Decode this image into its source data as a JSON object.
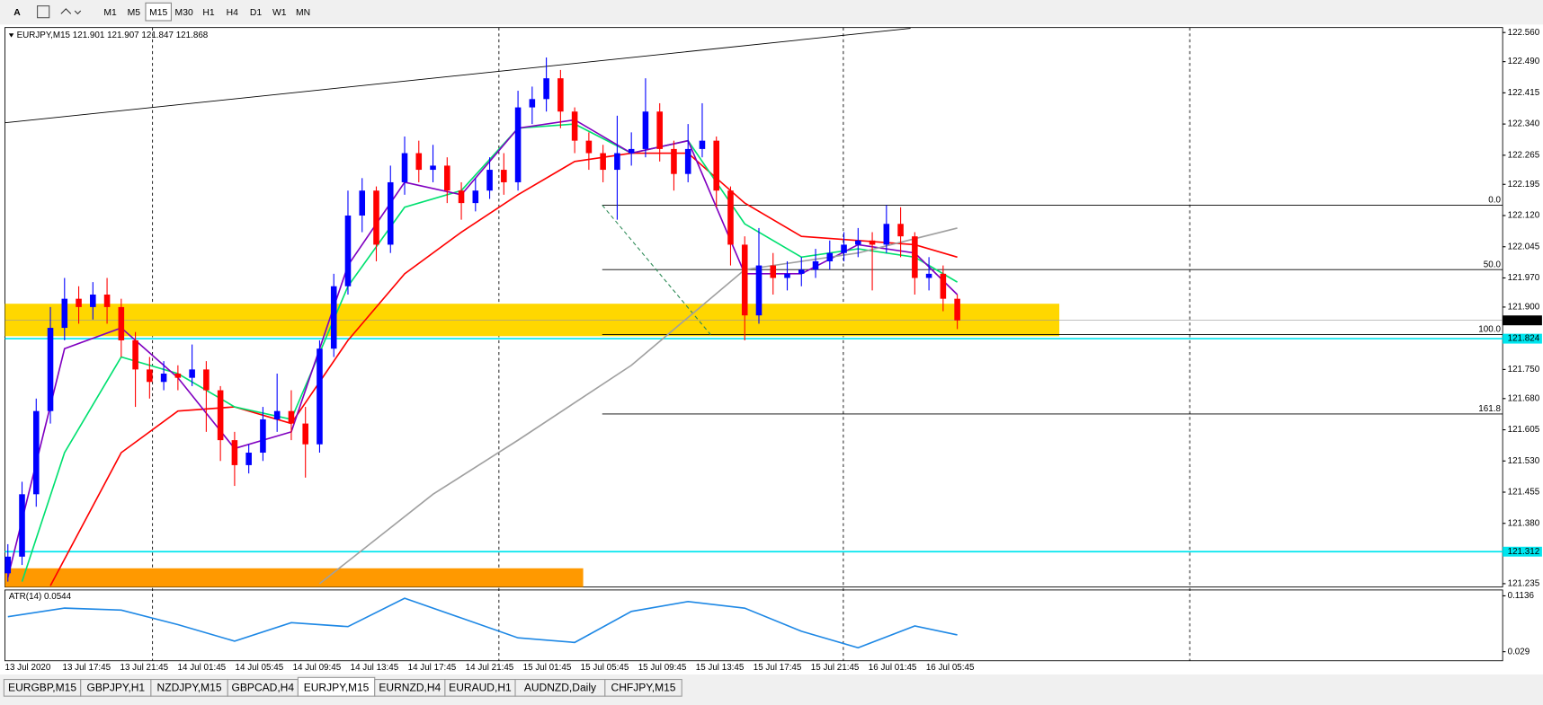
{
  "toolbar": {
    "tool": "A",
    "timeframes": [
      "M1",
      "M5",
      "M15",
      "M30",
      "H1",
      "H4",
      "D1",
      "W1",
      "MN"
    ],
    "active": "M15"
  },
  "chart_data": {
    "type": "candlestick",
    "title": "EURJPY,M15  121.901 121.907 121.847 121.868",
    "time_labels": [
      "13 Jul 2020",
      "13 Jul 17:45",
      "13 Jul 21:45",
      "14 Jul 01:45",
      "14 Jul 05:45",
      "14 Jul 09:45",
      "14 Jul 13:45",
      "14 Jul 17:45",
      "14 Jul 21:45",
      "15 Jul 01:45",
      "15 Jul 05:45",
      "15 Jul 09:45",
      "15 Jul 13:45",
      "15 Jul 17:45",
      "15 Jul 21:45",
      "16 Jul 01:45",
      "16 Jul 05:45"
    ],
    "open": [
      121.26,
      121.3,
      121.45,
      121.65,
      121.85,
      121.92,
      121.9,
      121.93,
      121.9,
      121.82,
      121.75,
      121.72,
      121.74,
      121.73,
      121.75,
      121.7,
      121.58,
      121.52,
      121.55,
      121.63,
      121.65,
      121.62,
      121.57,
      121.8,
      121.95,
      122.12,
      122.18,
      122.05,
      122.2,
      122.27,
      122.23,
      122.24,
      122.18,
      122.15,
      122.18,
      122.23,
      122.2,
      122.38,
      122.4,
      122.45,
      122.37,
      122.3,
      122.27,
      122.23,
      122.27,
      122.28,
      122.37,
      122.28,
      122.22,
      122.28,
      122.3,
      122.18,
      122.05,
      121.88,
      122.0,
      121.97,
      121.98,
      121.99,
      122.01,
      122.03,
      122.05,
      122.06,
      122.05,
      122.1,
      122.07,
      121.97,
      121.98,
      121.92
    ],
    "high": [
      121.33,
      121.48,
      121.68,
      121.9,
      121.97,
      121.95,
      121.96,
      121.97,
      121.92,
      121.84,
      121.78,
      121.77,
      121.76,
      121.81,
      121.77,
      121.71,
      121.6,
      121.57,
      121.66,
      121.74,
      121.7,
      121.66,
      121.82,
      121.98,
      122.18,
      122.21,
      122.19,
      122.24,
      122.31,
      122.3,
      122.29,
      122.26,
      122.2,
      122.21,
      122.26,
      122.27,
      122.42,
      122.43,
      122.5,
      122.47,
      122.38,
      122.32,
      122.29,
      122.36,
      122.32,
      122.45,
      122.39,
      122.3,
      122.34,
      122.39,
      122.31,
      122.19,
      122.07,
      122.09,
      122.03,
      122.01,
      122.02,
      122.04,
      122.06,
      122.08,
      122.09,
      122.08,
      122.145,
      122.14,
      122.08,
      122.02,
      122.0,
      121.93
    ],
    "low": [
      121.24,
      121.28,
      121.42,
      121.62,
      121.82,
      121.86,
      121.87,
      121.86,
      121.78,
      121.66,
      121.68,
      121.7,
      121.7,
      121.71,
      121.6,
      121.53,
      121.47,
      121.5,
      121.53,
      121.6,
      121.58,
      121.49,
      121.55,
      121.78,
      121.93,
      122.08,
      122.01,
      122.03,
      122.17,
      122.2,
      122.2,
      122.15,
      122.11,
      122.13,
      122.16,
      122.17,
      122.18,
      122.34,
      122.37,
      122.33,
      122.27,
      122.23,
      122.2,
      122.11,
      122.24,
      122.26,
      122.25,
      122.18,
      122.2,
      122.26,
      122.14,
      122.0,
      121.82,
      121.86,
      121.93,
      121.94,
      121.95,
      121.97,
      121.99,
      122.01,
      122.02,
      121.94,
      122.03,
      122.02,
      121.93,
      121.94,
      121.89,
      121.847
    ],
    "close": [
      121.3,
      121.45,
      121.65,
      121.85,
      121.92,
      121.9,
      121.93,
      121.9,
      121.82,
      121.75,
      121.72,
      121.74,
      121.73,
      121.75,
      121.7,
      121.58,
      121.52,
      121.55,
      121.63,
      121.65,
      121.62,
      121.57,
      121.8,
      121.95,
      122.12,
      122.18,
      122.05,
      122.2,
      122.27,
      122.23,
      122.24,
      122.18,
      122.15,
      122.18,
      122.23,
      122.2,
      122.38,
      122.4,
      122.45,
      122.37,
      122.3,
      122.27,
      122.23,
      122.27,
      122.28,
      122.37,
      122.28,
      122.22,
      122.28,
      122.3,
      122.18,
      122.05,
      121.88,
      122.0,
      121.97,
      121.98,
      121.99,
      122.01,
      122.03,
      122.05,
      122.06,
      122.05,
      122.1,
      122.07,
      121.97,
      121.98,
      121.92,
      121.868
    ],
    "up_color": "#0000ff",
    "down_color": "#ff0000",
    "ylim": [
      121.227,
      122.572
    ],
    "yticks": [
      {
        "value": 122.56,
        "label": "122.560"
      },
      {
        "value": 122.49,
        "label": "122.490"
      },
      {
        "value": 122.415,
        "label": "122.415"
      },
      {
        "value": 122.34,
        "label": "122.340"
      },
      {
        "value": 122.265,
        "label": "122.265"
      },
      {
        "value": 122.195,
        "label": "122.195"
      },
      {
        "value": 122.12,
        "label": "122.120"
      },
      {
        "value": 122.045,
        "label": "122.045"
      },
      {
        "value": 121.97,
        "label": "121.970"
      },
      {
        "value": 121.9,
        "label": "121.900"
      },
      {
        "value": 121.75,
        "label": "121.750"
      },
      {
        "value": 121.68,
        "label": "121.680"
      },
      {
        "value": 121.605,
        "label": "121.605"
      },
      {
        "value": 121.53,
        "label": "121.530"
      },
      {
        "value": 121.455,
        "label": "121.455"
      },
      {
        "value": 121.38,
        "label": "121.380"
      },
      {
        "value": 121.235,
        "label": "121.235"
      }
    ],
    "lines": [
      {
        "color": "#ff0000",
        "x": [
          3,
          8,
          12,
          16,
          20,
          24,
          28,
          32,
          36,
          40,
          44,
          48,
          52,
          56,
          60,
          64,
          67
        ],
        "values": [
          121.23,
          121.55,
          121.65,
          121.66,
          121.62,
          121.82,
          121.98,
          122.08,
          122.17,
          122.25,
          122.27,
          122.27,
          122.15,
          122.07,
          122.06,
          122.05,
          122.02
        ]
      },
      {
        "color": "#00e070",
        "x": [
          1,
          4,
          8,
          12,
          16,
          20,
          24,
          28,
          32,
          36,
          40,
          44,
          48,
          52,
          56,
          60,
          64,
          67
        ],
        "values": [
          121.24,
          121.55,
          121.78,
          121.74,
          121.66,
          121.63,
          121.95,
          122.14,
          122.18,
          122.33,
          122.34,
          122.27,
          122.3,
          122.1,
          122.02,
          122.04,
          122.02,
          121.96
        ]
      },
      {
        "color": "#8000c0",
        "x": [
          0,
          4,
          8,
          12,
          16,
          20,
          24,
          28,
          32,
          36,
          40,
          44,
          48,
          52,
          56,
          60,
          64,
          67
        ],
        "values": [
          121.25,
          121.8,
          121.85,
          121.73,
          121.56,
          121.6,
          122.0,
          122.2,
          122.17,
          122.33,
          122.35,
          122.27,
          122.3,
          121.98,
          121.98,
          122.05,
          122.03,
          121.93
        ]
      },
      {
        "color": "#a0a0a0",
        "x": [
          22,
          30,
          36,
          44,
          52,
          60,
          67
        ],
        "values": [
          121.235,
          121.45,
          121.58,
          121.76,
          121.99,
          122.03,
          122.09
        ]
      }
    ],
    "trendline": {
      "x": [
        -0.2,
        63.7
      ],
      "values": [
        122.343,
        122.57
      ]
    },
    "zones": [
      {
        "color": "#ffd700",
        "x": [
          -0.2,
          74.2
        ],
        "values": [
          121.83,
          121.908
        ]
      },
      {
        "color": "#ff9900",
        "x": [
          -0.2,
          40.6
        ],
        "values": [
          121.227,
          121.272
        ]
      }
    ],
    "hlines": [
      {
        "color": "#00e5ee",
        "value": 121.824
      },
      {
        "color": "#00e5ee",
        "value": 121.312
      }
    ],
    "current_price": 121.868,
    "fibo": {
      "labels": [
        "0.0",
        "50.0",
        "100.0",
        "161.8"
      ],
      "prices": [
        122.145,
        121.99,
        121.834,
        121.643
      ]
    },
    "atr": {
      "title": "ATR(14) 0.0544",
      "color": "#1e88e5",
      "ylim": [
        0.0153,
        0.1225
      ],
      "yticks": [
        0.1136,
        0.029
      ],
      "x": [
        0,
        4,
        8,
        12,
        16,
        20,
        24,
        28,
        32,
        36,
        40,
        44,
        48,
        52,
        56,
        60,
        64,
        67
      ],
      "values": [
        0.082,
        0.095,
        0.092,
        0.07,
        0.045,
        0.073,
        0.067,
        0.11,
        0.08,
        0.05,
        0.043,
        0.09,
        0.105,
        0.095,
        0.06,
        0.035,
        0.068,
        0.0544
      ]
    }
  },
  "tabs": {
    "items": [
      "EURGBP,M15",
      "GBPJPY,H1",
      "NZDJPY,M15",
      "GBPCAD,H4",
      "EURJPY,M15",
      "EURNZD,H4",
      "EURAUD,H1",
      "AUDNZD,Daily",
      "CHFJPY,M15"
    ],
    "active": 4
  }
}
